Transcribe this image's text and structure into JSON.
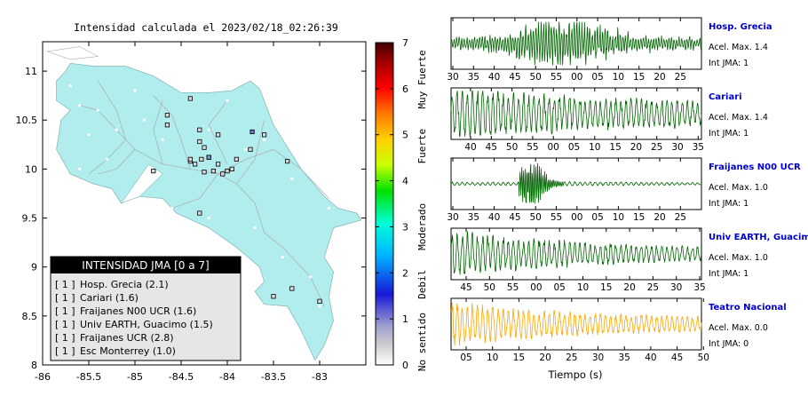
{
  "map": {
    "title": "Intensidad calculada el 2023/02/18_02:26:39",
    "x_ticks": [
      "-86",
      "-85.5",
      "-85",
      "-84.5",
      "-84",
      "-83.5",
      "-83"
    ],
    "y_ticks": [
      "11",
      "10.5",
      "10",
      "9.5",
      "9",
      "8.5",
      "8"
    ],
    "xlim": [
      -86,
      -82.5
    ],
    "ylim": [
      8,
      11.3
    ],
    "land_color": "#b2eded",
    "colorbar": {
      "ticks": [
        "0",
        "1",
        "2",
        "3",
        "4",
        "5",
        "6",
        "7"
      ],
      "category_labels": [
        "No sentido",
        "Debil",
        "Moderado",
        "Fuerte",
        "Muy Fuerte"
      ]
    },
    "legend": {
      "header": "INTENSIDAD JMA [0 a 7]",
      "items": [
        {
          "level": "[ 1 ]",
          "name": "Hosp. Grecia (2.1)"
        },
        {
          "level": "[ 1 ]",
          "name": "Cariari (1.6)"
        },
        {
          "level": "[ 1 ]",
          "name": "Fraijanes N00 UCR (1.6)"
        },
        {
          "level": "[ 1 ]",
          "name": "Univ EARTH, Guacimo (1.5)"
        },
        {
          "level": "[ 1 ]",
          "name": "Fraijanes UCR (2.8)"
        },
        {
          "level": "[ 1 ]",
          "name": "Esc Monterrey (1.0)"
        }
      ]
    }
  },
  "chart_data": {
    "type": "line",
    "xlabel": "Tiempo (s)",
    "panels": [
      {
        "station": "Hosp. Grecia",
        "acel": "Acel. Max. 1.4",
        "int": "Int JMA: 1",
        "x_ticks": [
          "30",
          "35",
          "40",
          "45",
          "50",
          "55",
          "00",
          "05",
          "10",
          "15",
          "20",
          "25"
        ],
        "first_tick": 30,
        "tick_step": 5,
        "color": "#006400",
        "onset": 0.15,
        "amp": 0.9,
        "station_color": "#0000cc"
      },
      {
        "station": "Cariari",
        "acel": "Acel. Max. 1.4",
        "int": "Int JMA: 1",
        "x_ticks": [
          "40",
          "45",
          "50",
          "55",
          "00",
          "05",
          "10",
          "15",
          "20",
          "25",
          "30",
          "35"
        ],
        "first_tick": 40,
        "tick_step": 5,
        "color": "#006400",
        "onset": 0.02,
        "amp": 0.95,
        "station_color": "#0000cc"
      },
      {
        "station": "Fraijanes N00 UCR",
        "acel": "Acel. Max. 1.0",
        "int": "Int JMA: 1",
        "x_ticks": [
          "30",
          "35",
          "40",
          "45",
          "50",
          "55",
          "00",
          "05",
          "10",
          "15",
          "20",
          "25"
        ],
        "first_tick": 30,
        "tick_step": 5,
        "color": "#006400",
        "onset": 0.28,
        "amp": 0.95,
        "station_color": "#0000cc"
      },
      {
        "station": "Univ EARTH, Guacimo",
        "acel": "Acel. Max. 1.0",
        "int": "Int JMA: 1",
        "x_ticks": [
          "45",
          "50",
          "55",
          "00",
          "05",
          "10",
          "15",
          "20",
          "25",
          "30",
          "35"
        ],
        "first_tick": 45,
        "tick_step": 5,
        "color": "#006400",
        "onset": 0.02,
        "amp": 0.95,
        "station_color": "#0000cc"
      },
      {
        "station": "Teatro Nacional",
        "acel": "Acel. Max. 0.0",
        "int": "Int JMA: 0",
        "x_ticks": [
          "05",
          "10",
          "15",
          "20",
          "25",
          "30",
          "35",
          "40",
          "45",
          "50"
        ],
        "first_tick": 5,
        "tick_step": 5,
        "color": "#ffa500",
        "onset": 0.0,
        "amp": 0.9,
        "station_color": "#0000cc"
      }
    ]
  }
}
